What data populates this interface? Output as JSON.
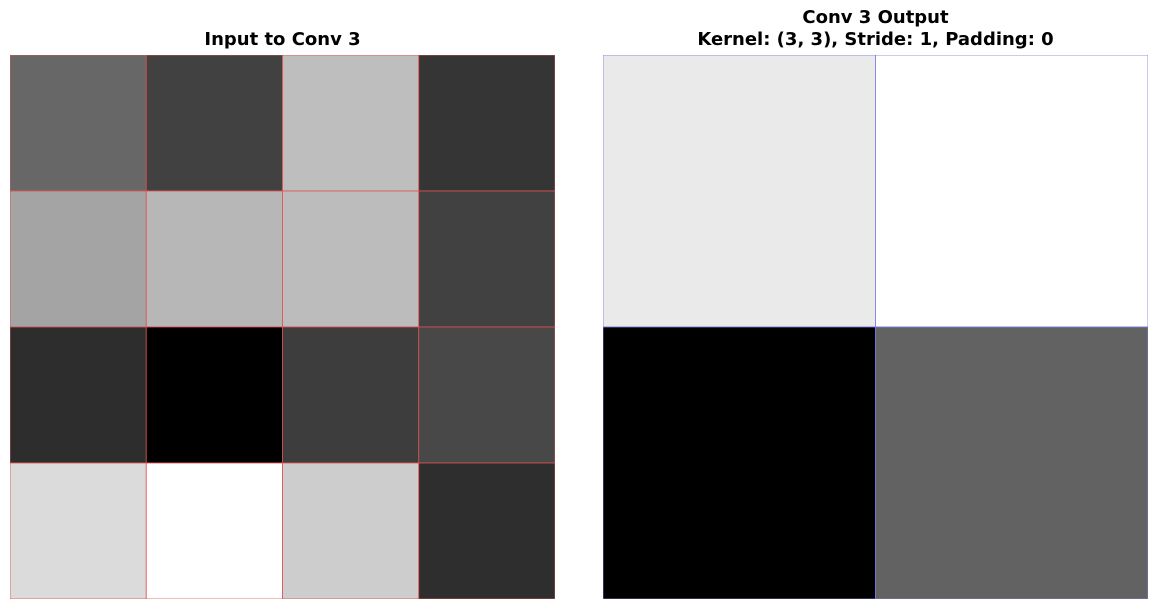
{
  "chart_data": [
    {
      "type": "heatmap",
      "title": "Input to Conv 3",
      "rows": 4,
      "cols": 4,
      "colormap": "gray",
      "grid_color": "#e05050",
      "cell_gray_levels": [
        [
          103,
          65,
          190,
          53
        ],
        [
          164,
          183,
          188,
          65
        ],
        [
          45,
          0,
          61,
          72
        ],
        [
          219,
          255,
          205,
          46
        ]
      ]
    },
    {
      "type": "heatmap",
      "title": "Conv 3 Output",
      "subtitle": "Kernel: (3, 3), Stride: 1, Padding: 0",
      "rows": 2,
      "cols": 2,
      "colormap": "gray",
      "grid_color": "#7a7ae8",
      "cell_gray_levels": [
        [
          234,
          255
        ],
        [
          0,
          98
        ]
      ]
    }
  ]
}
